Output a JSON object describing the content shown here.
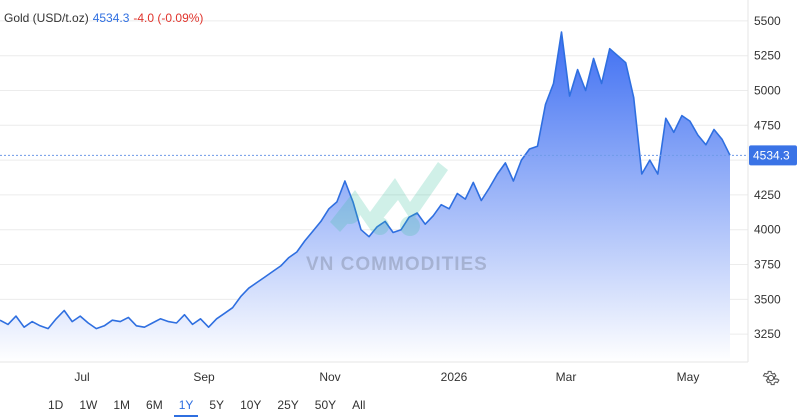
{
  "header": {
    "instrument": "Gold (USD/t.oz)",
    "price": "4534.3",
    "change": "-4.0 (-0.09%)"
  },
  "watermark": {
    "text": "VN COMMODITIES"
  },
  "range_buttons": [
    {
      "label": "1D"
    },
    {
      "label": "1W"
    },
    {
      "label": "1M"
    },
    {
      "label": "6M"
    },
    {
      "label": "1Y",
      "active": true
    },
    {
      "label": "5Y"
    },
    {
      "label": "10Y"
    },
    {
      "label": "25Y"
    },
    {
      "label": "50Y"
    },
    {
      "label": "All"
    }
  ],
  "icons": {
    "settings": "gear-icon"
  },
  "colors": {
    "line": "#2f6fe0",
    "fill_top": "#3d6ef2",
    "fill_bottom": "#ffffff",
    "up": "#2f6fe0",
    "down": "#e0342c",
    "label_bg": "#3a73e6"
  },
  "chart_data": {
    "type": "area",
    "title": "",
    "xlabel": "",
    "ylabel": "",
    "last_value_label": "4534.3",
    "ylim": [
      3050,
      5650
    ],
    "y_ticks": [
      3250,
      3500,
      3750,
      4000,
      4250,
      4500,
      4750,
      5000,
      5250,
      5500
    ],
    "x_tick_labels": [
      "Jul",
      "Sep",
      "Nov",
      "2026",
      "Mar",
      "May"
    ],
    "grid": true,
    "x": [
      0,
      4,
      8,
      12,
      16,
      20,
      24,
      28,
      32,
      36,
      40,
      44,
      48,
      52,
      56,
      60,
      64,
      68,
      72,
      76,
      80,
      84,
      88,
      92,
      96,
      100,
      104,
      108,
      112,
      116,
      120,
      124,
      128,
      132,
      136,
      140,
      144,
      148,
      152,
      156,
      160,
      164,
      168,
      172,
      176,
      180,
      184,
      188,
      192,
      196,
      200,
      204,
      208,
      212,
      216,
      220,
      224,
      228,
      232,
      236,
      240,
      244,
      248,
      252,
      256,
      260,
      264,
      268,
      272,
      276,
      280,
      284,
      288,
      292,
      296,
      300,
      304,
      308,
      312,
      316,
      320,
      324,
      328,
      332,
      336,
      340,
      344,
      348,
      352,
      356,
      360,
      364
    ],
    "series": [
      {
        "values": [
          3350,
          3320,
          3380,
          3300,
          3340,
          3310,
          3290,
          3360,
          3420,
          3340,
          3380,
          3330,
          3290,
          3310,
          3350,
          3340,
          3370,
          3310,
          3300,
          3330,
          3360,
          3340,
          3330,
          3390,
          3320,
          3360,
          3300,
          3360,
          3400,
          3440,
          3520,
          3580,
          3620,
          3660,
          3700,
          3740,
          3800,
          3840,
          3920,
          3990,
          4060,
          4150,
          4200,
          4350,
          4200,
          4000,
          3950,
          4020,
          4060,
          3980,
          4000,
          4090,
          4120,
          4040,
          4100,
          4180,
          4150,
          4260,
          4220,
          4340,
          4210,
          4300,
          4400,
          4480,
          4350,
          4500,
          4580,
          4600,
          4900,
          5050,
          5420,
          4960,
          5150,
          5000,
          5230,
          5050,
          5300,
          5250,
          5200,
          4950,
          4400,
          4500,
          4400,
          4800,
          4700,
          4820,
          4780,
          4680,
          4610,
          4720,
          4650,
          4534.3
        ]
      }
    ]
  }
}
